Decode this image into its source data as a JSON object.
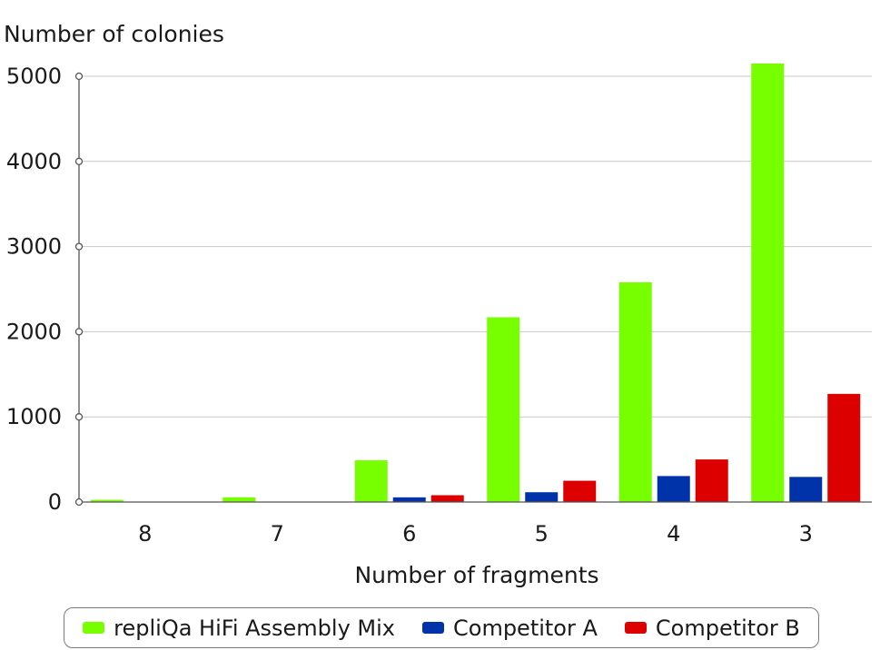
{
  "chart_data": {
    "type": "bar",
    "ylabel": "Number of colonies",
    "xlabel": "Number of fragments",
    "categories": [
      "8",
      "7",
      "6",
      "5",
      "4",
      "3"
    ],
    "ylim": [
      0,
      5000
    ],
    "yticks": [
      0,
      1000,
      2000,
      3000,
      4000,
      5000
    ],
    "grid": true,
    "legend_position": "bottom",
    "series": [
      {
        "name": "repliQa HiFi Assembly Mix",
        "color": "#77ff00",
        "values": [
          25,
          55,
          490,
          2170,
          2580,
          5150
        ]
      },
      {
        "name": "Competitor A",
        "color": "#0033aa",
        "values": [
          0,
          0,
          55,
          115,
          305,
          295
        ]
      },
      {
        "name": "Competitor B",
        "color": "#dd0000",
        "values": [
          0,
          0,
          80,
          250,
          500,
          1270
        ]
      }
    ]
  }
}
